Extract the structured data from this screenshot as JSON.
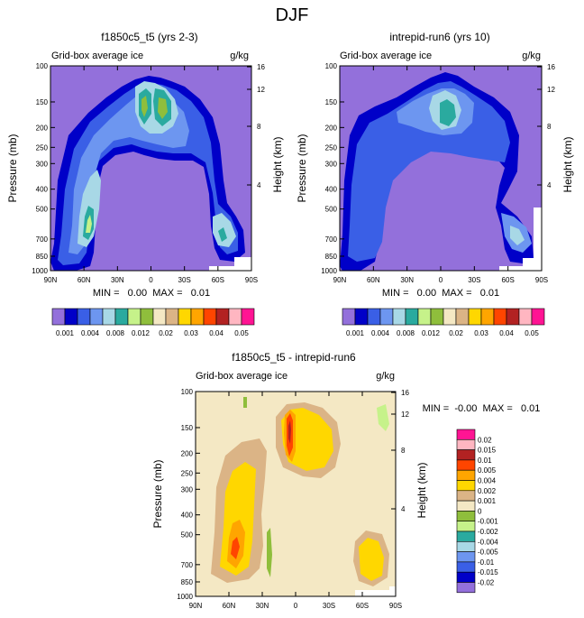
{
  "page_title": "DJF",
  "colors": {
    "positive_scale": [
      "#9370db",
      "#0000c8",
      "#3a5fe6",
      "#6d96f0",
      "#a8d8e6",
      "#2aaa9f",
      "#c6f28a",
      "#8fbe3c",
      "#f4e8c4",
      "#dbb486",
      "#ffd700",
      "#ffa500",
      "#ff4500",
      "#b22222",
      "#ffb6c1",
      "#ff1493"
    ],
    "difference_scale": [
      "#9370db",
      "#0000c8",
      "#3a5fe6",
      "#6d96f0",
      "#a8d8e6",
      "#2aaa9f",
      "#c6f28a",
      "#8fbe3c",
      "#f4e8c4",
      "#dbb486",
      "#ffd700",
      "#ffa500",
      "#ff4500",
      "#b22222",
      "#ffb6c1",
      "#ff1493"
    ]
  },
  "chart_data": [
    {
      "id": "panel1",
      "type": "contour",
      "title": "f1850c5_t5 (yrs 2-3)",
      "left_string": "Grid-box average ice",
      "right_string": "g/kg",
      "ylabel": "Pressure (mb)",
      "ylabel_right": "Height (km)",
      "x_ticks": [
        "90N",
        "60N",
        "30N",
        "0",
        "30S",
        "60S",
        "90S"
      ],
      "x_values": [
        90,
        60,
        30,
        0,
        -30,
        -60,
        -90
      ],
      "y_ticks": [
        "100",
        "150",
        "200",
        "250",
        "300",
        "400",
        "500",
        "700",
        "850",
        "1000"
      ],
      "y_values": [
        100,
        150,
        200,
        250,
        300,
        400,
        500,
        700,
        850,
        1000
      ],
      "height_ticks": [
        "16",
        "12",
        "8",
        "4"
      ],
      "height_values": [
        16,
        12,
        8,
        4
      ],
      "stats": "MIN =   0.00  MAX =   0.01",
      "min": 0.0,
      "max": 0.01,
      "colorbar_labels": [
        "0.001",
        "0.004",
        "0.008",
        "0.012",
        "0.02",
        "0.03",
        "0.04",
        "0.05"
      ],
      "levels": [
        0.001,
        0.002,
        0.003,
        0.004,
        0.006,
        0.008,
        0.01,
        0.012,
        0.015,
        0.02,
        0.025,
        0.03,
        0.035,
        0.04,
        0.045,
        0.05
      ]
    },
    {
      "id": "panel2",
      "type": "contour",
      "title": "intrepid-run6 (yrs 10)",
      "left_string": "Grid-box average ice",
      "right_string": "g/kg",
      "ylabel": "Pressure (mb)",
      "ylabel_right": "Height (km)",
      "x_ticks": [
        "90N",
        "60N",
        "30N",
        "0",
        "30S",
        "60S",
        "90S"
      ],
      "x_values": [
        90,
        60,
        30,
        0,
        -30,
        -60,
        -90
      ],
      "y_ticks": [
        "100",
        "150",
        "200",
        "250",
        "300",
        "400",
        "500",
        "700",
        "850",
        "1000"
      ],
      "y_values": [
        100,
        150,
        200,
        250,
        300,
        400,
        500,
        700,
        850,
        1000
      ],
      "height_ticks": [
        "16",
        "12",
        "8",
        "4"
      ],
      "height_values": [
        16,
        12,
        8,
        4
      ],
      "stats": "MIN =   0.00  MAX =   0.01",
      "min": 0.0,
      "max": 0.01,
      "colorbar_labels": [
        "0.001",
        "0.004",
        "0.008",
        "0.012",
        "0.02",
        "0.03",
        "0.04",
        "0.05"
      ],
      "levels": [
        0.001,
        0.002,
        0.003,
        0.004,
        0.006,
        0.008,
        0.01,
        0.012,
        0.015,
        0.02,
        0.025,
        0.03,
        0.035,
        0.04,
        0.045,
        0.05
      ]
    },
    {
      "id": "panel3",
      "type": "contour",
      "title": "f1850c5_t5 - intrepid-run6",
      "left_string": "Grid-box average ice",
      "right_string": "g/kg",
      "ylabel": "Pressure (mb)",
      "ylabel_right": "Height (km)",
      "x_ticks": [
        "90N",
        "60N",
        "30N",
        "0",
        "30S",
        "60S",
        "90S"
      ],
      "x_values": [
        90,
        60,
        30,
        0,
        -30,
        -60,
        -90
      ],
      "y_ticks": [
        "100",
        "150",
        "200",
        "250",
        "300",
        "400",
        "500",
        "700",
        "850",
        "1000"
      ],
      "y_values": [
        100,
        150,
        200,
        250,
        300,
        400,
        500,
        700,
        850,
        1000
      ],
      "height_ticks": [
        "16",
        "12",
        "8",
        "4"
      ],
      "height_values": [
        16,
        12,
        8,
        4
      ],
      "stats": "MIN =  -0.00  MAX =   0.01",
      "min": -0.0,
      "max": 0.01,
      "colorbar_labels": [
        "0.02",
        "0.015",
        "0.01",
        "0.005",
        "0.004",
        "0.002",
        "0.001",
        "0",
        "-0.001",
        "-0.002",
        "-0.004",
        "-0.005",
        "-0.01",
        "-0.015",
        "-0.02"
      ],
      "levels": [
        0.02,
        0.015,
        0.01,
        0.005,
        0.004,
        0.002,
        0.001,
        0,
        -0.001,
        -0.002,
        -0.004,
        -0.005,
        -0.01,
        -0.015,
        -0.02
      ]
    }
  ]
}
